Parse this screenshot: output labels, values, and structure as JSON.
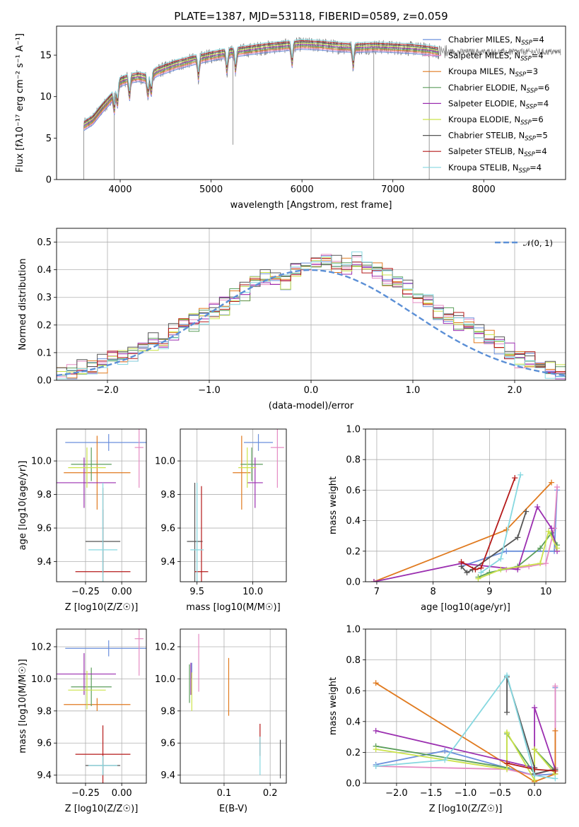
{
  "colors": {
    "Chabrier MILES": "#6a8fdc",
    "Salpeter MILES": "#e58bc3",
    "Kroupa MILES": "#e07a1f",
    "Chabrier ELODIE": "#5b9e5b",
    "Salpeter ELODIE": "#9b2fb0",
    "Kroupa ELODIE": "#cbe34a",
    "Chabrier STELIB": "#555555",
    "Salpeter STELIB": "#b51a1a",
    "Kroupa STELIB": "#86d8e0",
    "data": "#7f7f7f",
    "normal": "#5b8fd6"
  },
  "chart_data": [
    {
      "type": "line",
      "title": "PLATE=1387, MJD=53118, FIBERID=0589, z=0.059",
      "xlabel": "wavelength [Angstrom, rest frame]",
      "ylabel": "Flux [fλ10⁻¹⁷ erg cm⁻² s⁻¹ A⁻¹]",
      "xlim": [
        3300,
        8900
      ],
      "ylim": [
        0,
        18.5
      ],
      "xticks": [
        4000,
        5000,
        6000,
        7000,
        8000
      ],
      "yticks": [
        0,
        5,
        10,
        15
      ],
      "grid": false,
      "legend_position": "right",
      "legend": [
        "Chabrier MILES, N_SSP=4",
        "Salpeter MILES, N_SSP=4",
        "Kroupa MILES, N_SSP=3",
        "Chabrier ELODIE, N_SSP=6",
        "Salpeter ELODIE, N_SSP=4",
        "Kroupa ELODIE, N_SSP=6",
        "Chabrier STELIB, N_SSP=5",
        "Salpeter STELIB, N_SSP=4",
        "Kroupa STELIB, N_SSP=4"
      ],
      "continuum": {
        "x": [
          3600,
          3700,
          3800,
          3900,
          4000,
          4100,
          4200,
          4300,
          4400,
          4600,
          4800,
          5000,
          5200,
          5400,
          5600,
          5800,
          6000,
          6200,
          6400,
          6600,
          6800,
          7000,
          7200,
          7400,
          7500
        ],
        "y": [
          6.5,
          7.2,
          8.6,
          9.8,
          11.8,
          12.2,
          12.4,
          12.2,
          13.0,
          13.8,
          14.4,
          14.9,
          15.3,
          15.6,
          15.9,
          16.1,
          16.3,
          16.2,
          16.0,
          15.9,
          16.0,
          15.9,
          15.8,
          15.6,
          15.4
        ]
      }
    },
    {
      "type": "bar",
      "xlabel": "(data-model)/error",
      "ylabel": "Normed distribution",
      "xlim": [
        -2.5,
        2.5
      ],
      "ylim": [
        0,
        0.55
      ],
      "xticks": [
        -2,
        -1,
        0,
        1,
        2
      ],
      "yticks": [
        0.0,
        0.1,
        0.2,
        0.3,
        0.4,
        0.5
      ],
      "grid": true,
      "legend_position": "top-right",
      "legend": [
        "𝒩(0, 1)"
      ],
      "bin_edges_start": -2.5,
      "bin_width": 0.1,
      "histogram": [
        0.02,
        0.03,
        0.04,
        0.05,
        0.06,
        0.07,
        0.08,
        0.1,
        0.12,
        0.14,
        0.15,
        0.17,
        0.19,
        0.21,
        0.23,
        0.25,
        0.27,
        0.3,
        0.32,
        0.34,
        0.37,
        0.38,
        0.36,
        0.4,
        0.41,
        0.41,
        0.42,
        0.42,
        0.41,
        0.43,
        0.41,
        0.4,
        0.37,
        0.34,
        0.33,
        0.3,
        0.28,
        0.25,
        0.23,
        0.21,
        0.19,
        0.17,
        0.15,
        0.13,
        0.1,
        0.08,
        0.07,
        0.05,
        0.04,
        0.03
      ]
    },
    {
      "type": "scatter",
      "xlabel": "Z [log10(Z/Z☉)]",
      "ylabel": "age  [log10(age/yr)]",
      "xlim": [
        -0.45,
        0.17
      ],
      "ylim": [
        9.28,
        10.19
      ],
      "xticks": [
        -0.25,
        0.0
      ],
      "yticks": [
        9.4,
        9.6,
        9.8,
        10.0
      ],
      "grid": true,
      "points": [
        {
          "series": "Chabrier MILES",
          "x": -0.09,
          "xerr": 0.3,
          "y": 10.11,
          "yerr": 0.05
        },
        {
          "series": "Salpeter MILES",
          "x": 0.12,
          "xerr": 0.03,
          "y": 10.08,
          "yerr": 0.24
        },
        {
          "series": "Kroupa MILES",
          "x": -0.17,
          "xerr": 0.23,
          "y": 9.93,
          "yerr": 0.22
        },
        {
          "series": "Chabrier ELODIE",
          "x": -0.21,
          "xerr": 0.14,
          "y": 9.98,
          "yerr": 0.1
        },
        {
          "series": "Salpeter ELODIE",
          "x": -0.26,
          "xerr": 0.22,
          "y": 9.87,
          "yerr": 0.15
        },
        {
          "series": "Kroupa ELODIE",
          "x": -0.24,
          "xerr": 0.13,
          "y": 9.96,
          "yerr": 0.12
        },
        {
          "series": "Chabrier STELIB",
          "x": -0.13,
          "xerr": 0.12,
          "y": 9.52,
          "yerr": 0.19
        },
        {
          "series": "Salpeter STELIB",
          "x": -0.13,
          "xerr": 0.19,
          "y": 9.34,
          "yerr": 0.5
        },
        {
          "series": "Kroupa STELIB",
          "x": -0.13,
          "xerr": 0.1,
          "y": 9.47,
          "yerr": 0.4
        }
      ]
    },
    {
      "type": "scatter",
      "xlabel": "mass [log10(M/M☉)]",
      "ylabel": "",
      "xlim": [
        9.35,
        10.3
      ],
      "ylim": [
        9.28,
        10.19
      ],
      "xticks": [
        9.5,
        10.0
      ],
      "yticks": [
        9.4,
        9.6,
        9.8,
        10.0
      ],
      "grid": true,
      "points": [
        {
          "series": "Chabrier MILES",
          "x": 10.05,
          "xerr": 0.13,
          "y": 10.11,
          "yerr": 0.05
        },
        {
          "series": "Salpeter MILES",
          "x": 10.22,
          "xerr": 0.06,
          "y": 10.08,
          "yerr": 0.24
        },
        {
          "series": "Kroupa MILES",
          "x": 9.9,
          "xerr": 0.08,
          "y": 9.93,
          "yerr": 0.22
        },
        {
          "series": "Chabrier ELODIE",
          "x": 9.99,
          "xerr": 0.1,
          "y": 9.98,
          "yerr": 0.1
        },
        {
          "series": "Salpeter ELODIE",
          "x": 10.02,
          "xerr": 0.07,
          "y": 9.87,
          "yerr": 0.15
        },
        {
          "series": "Kroupa ELODIE",
          "x": 9.95,
          "xerr": 0.08,
          "y": 9.96,
          "yerr": 0.12
        },
        {
          "series": "Chabrier STELIB",
          "x": 9.48,
          "xerr": 0.07,
          "y": 9.52,
          "yerr": 0.35
        },
        {
          "series": "Salpeter STELIB",
          "x": 9.54,
          "xerr": 0.06,
          "y": 9.34,
          "yerr": 0.51
        },
        {
          "series": "Kroupa STELIB",
          "x": 9.5,
          "xerr": 0.06,
          "y": 9.47,
          "yerr": 0.4
        }
      ]
    },
    {
      "type": "line",
      "xlabel": "age  [log10(age/yr)]",
      "ylabel": "mass weight",
      "xlim": [
        6.8,
        10.35
      ],
      "ylim": [
        0,
        1.0
      ],
      "xticks": [
        7,
        8,
        9,
        10
      ],
      "yticks": [
        0.0,
        0.2,
        0.4,
        0.6,
        0.8,
        1.0
      ],
      "grid": true,
      "series": [
        {
          "name": "Chabrier MILES",
          "x": [
            8.5,
            9.3,
            10.15,
            10.2
          ],
          "y": [
            0.1,
            0.2,
            0.2,
            0.6
          ]
        },
        {
          "name": "Salpeter MILES",
          "x": [
            9.3,
            9.7,
            10.0,
            10.15,
            10.2
          ],
          "y": [
            0.08,
            0.1,
            0.12,
            0.35,
            0.62
          ]
        },
        {
          "name": "Kroupa MILES",
          "x": [
            6.95,
            9.3,
            10.1
          ],
          "y": [
            0.0,
            0.34,
            0.65
          ]
        },
        {
          "name": "Chabrier ELODIE",
          "x": [
            8.8,
            9.0,
            9.5,
            9.9,
            10.1,
            10.2
          ],
          "y": [
            0.03,
            0.06,
            0.1,
            0.22,
            0.32,
            0.24
          ]
        },
        {
          "name": "Salpeter ELODIE",
          "x": [
            6.95,
            8.5,
            9.5,
            9.85,
            10.1,
            10.2
          ],
          "y": [
            0.0,
            0.12,
            0.08,
            0.49,
            0.35,
            0.2
          ]
        },
        {
          "name": "Kroupa ELODIE",
          "x": [
            8.8,
            9.2,
            9.9,
            10.05,
            10.2
          ],
          "y": [
            0.02,
            0.08,
            0.12,
            0.33,
            0.22
          ]
        },
        {
          "name": "Chabrier STELIB",
          "x": [
            8.5,
            8.6,
            8.7,
            9.5,
            9.65
          ],
          "y": [
            0.1,
            0.06,
            0.08,
            0.29,
            0.46
          ]
        },
        {
          "name": "Salpeter STELIB",
          "x": [
            8.5,
            8.75,
            8.85,
            9.45
          ],
          "y": [
            0.13,
            0.08,
            0.09,
            0.68
          ]
        },
        {
          "name": "Kroupa STELIB",
          "x": [
            8.85,
            9.2,
            9.55
          ],
          "y": [
            0.06,
            0.15,
            0.7
          ]
        }
      ]
    },
    {
      "type": "scatter",
      "xlabel": "Z [log10(Z/Z☉)]",
      "ylabel": "mass [log10(M/M☉)]",
      "xlim": [
        -0.45,
        0.17
      ],
      "ylim": [
        9.35,
        10.31
      ],
      "xticks": [
        -0.25,
        0.0
      ],
      "yticks": [
        9.4,
        9.6,
        9.8,
        10.0,
        10.2
      ],
      "grid": true,
      "points": [
        {
          "series": "Chabrier MILES",
          "x": -0.09,
          "xerr": 0.3,
          "y": 10.19,
          "yerr": 0.05
        },
        {
          "series": "Salpeter MILES",
          "x": 0.12,
          "xerr": 0.03,
          "y": 10.25,
          "yerr": 0.23
        },
        {
          "series": "Kroupa MILES",
          "x": -0.17,
          "xerr": 0.23,
          "y": 9.84,
          "yerr": 0.04
        },
        {
          "series": "Chabrier ELODIE",
          "x": -0.21,
          "xerr": 0.14,
          "y": 9.95,
          "yerr": 0.12
        },
        {
          "series": "Salpeter ELODIE",
          "x": -0.26,
          "xerr": 0.22,
          "y": 10.03,
          "yerr": 0.13
        },
        {
          "series": "Kroupa ELODIE",
          "x": -0.24,
          "xerr": 0.13,
          "y": 9.93,
          "yerr": 0.12
        },
        {
          "series": "Chabrier STELIB",
          "x": -0.13,
          "xerr": 0.12,
          "y": 9.46,
          "yerr": 0.06
        },
        {
          "series": "Salpeter STELIB",
          "x": -0.13,
          "xerr": 0.19,
          "y": 9.53,
          "yerr": 0.18
        },
        {
          "series": "Kroupa STELIB",
          "x": -0.13,
          "xerr": 0.1,
          "y": 9.46,
          "yerr": 0.06
        }
      ]
    },
    {
      "type": "scatter",
      "xlabel": "E(B-V)",
      "ylabel": "",
      "xlim": [
        0.005,
        0.235
      ],
      "ylim": [
        9.35,
        10.31
      ],
      "xticks": [
        0.1,
        0.2
      ],
      "yticks": [
        9.4,
        9.6,
        9.8,
        10.0,
        10.2
      ],
      "grid": true,
      "points": [
        {
          "series": "Chabrier MILES",
          "x": 0.03,
          "y": 10.05,
          "yerr": 0.05
        },
        {
          "series": "Salpeter MILES",
          "x": 0.045,
          "y": 10.1,
          "yerr": 0.18
        },
        {
          "series": "Kroupa MILES",
          "x": 0.11,
          "y": 9.95,
          "yerr": 0.18
        },
        {
          "series": "Chabrier ELODIE",
          "x": 0.025,
          "y": 9.97,
          "yerr": 0.12
        },
        {
          "series": "Salpeter ELODIE",
          "x": 0.028,
          "y": 10.0,
          "yerr": 0.1
        },
        {
          "series": "Kroupa ELODIE",
          "x": 0.03,
          "y": 9.92,
          "yerr": 0.12
        },
        {
          "series": "Chabrier STELIB",
          "x": 0.222,
          "y": 9.5,
          "yerr": 0.12
        },
        {
          "series": "Salpeter STELIB",
          "x": 0.178,
          "y": 9.62,
          "yerr": 0.1
        },
        {
          "series": "Kroupa STELIB",
          "x": 0.178,
          "y": 9.52,
          "yerr": 0.12
        }
      ]
    },
    {
      "type": "line",
      "xlabel": "Z [log10(Z/Z☉)]",
      "ylabel": "mass weight",
      "xlim": [
        -2.45,
        0.45
      ],
      "ylim": [
        0,
        1.0
      ],
      "xticks": [
        -2.0,
        -1.5,
        -1.0,
        -0.5,
        0.0
      ],
      "yticks": [
        0.0,
        0.2,
        0.4,
        0.6,
        0.8,
        1.0
      ],
      "grid": true,
      "series": [
        {
          "name": "Chabrier MILES",
          "x": [
            -2.3,
            -1.3,
            0.0,
            0.3,
            0.3
          ],
          "y": [
            0.12,
            0.21,
            0.05,
            0.06,
            0.62
          ]
        },
        {
          "name": "Salpeter MILES",
          "x": [
            -2.3,
            -0.4,
            0.0,
            0.3,
            0.3
          ],
          "y": [
            0.11,
            0.09,
            0.05,
            0.1,
            0.63
          ]
        },
        {
          "name": "Kroupa MILES",
          "x": [
            -2.3,
            0.0,
            0.3,
            0.3
          ],
          "y": [
            0.65,
            0.01,
            0.06,
            0.34
          ]
        },
        {
          "name": "Chabrier ELODIE",
          "x": [
            -2.3,
            -0.4,
            -0.4,
            0.0,
            0.0,
            0.3
          ],
          "y": [
            0.24,
            0.1,
            0.32,
            0.06,
            0.22,
            0.08
          ]
        },
        {
          "name": "Salpeter ELODIE",
          "x": [
            -2.3,
            0.0,
            0.0,
            0.3
          ],
          "y": [
            0.34,
            0.1,
            0.49,
            0.09
          ]
        },
        {
          "name": "Kroupa ELODIE",
          "x": [
            -2.3,
            -0.4,
            -0.4,
            0.0,
            0.0,
            0.3
          ],
          "y": [
            0.22,
            0.09,
            0.33,
            0.02,
            0.22,
            0.06
          ]
        },
        {
          "name": "Chabrier STELIB",
          "x": [
            -0.4,
            -0.4,
            0.0,
            0.0,
            0.3
          ],
          "y": [
            0.46,
            0.69,
            0.1,
            0.06,
            0.09
          ]
        },
        {
          "name": "Salpeter STELIB",
          "x": [
            -0.4,
            0.0,
            0.3
          ],
          "y": [
            0.13,
            0.09,
            0.08
          ]
        },
        {
          "name": "Kroupa STELIB",
          "x": [
            -2.3,
            -1.3,
            -0.4,
            0.0,
            0.3
          ],
          "y": [
            0.11,
            0.15,
            0.7,
            0.05,
            0.03
          ]
        }
      ]
    }
  ]
}
